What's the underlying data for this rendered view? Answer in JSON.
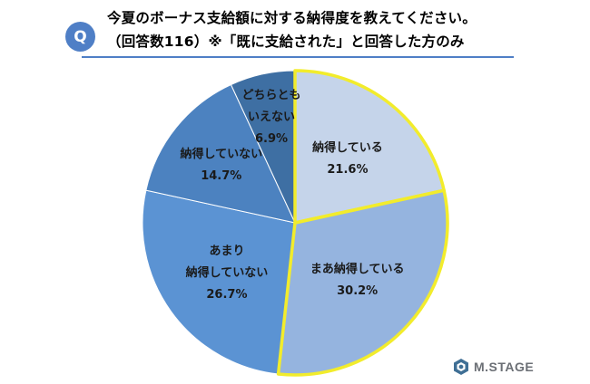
{
  "header": {
    "badge": "Q",
    "title_line1": "今夏のボーナス支給額に対する納得度を教えてください。",
    "title_line2": "（回答数116）※「既に支給された」と回答した方のみ"
  },
  "chart_data": {
    "type": "pie",
    "title": "今夏のボーナス支給額に対する納得度を教えてください。（回答数116）※「既に支給された」と回答した方のみ",
    "start_angle_deg": 0,
    "direction": "clockwise",
    "slices": [
      {
        "name": "納得している",
        "value": 21.6,
        "label_lines": [
          "納得している",
          "21.6%"
        ],
        "color": "#c5d4ea",
        "highlight": true
      },
      {
        "name": "まあ納得している",
        "value": 30.2,
        "label_lines": [
          "まあ納得している",
          "30.2%"
        ],
        "color": "#95b4df",
        "highlight": true
      },
      {
        "name": "あまり納得していない",
        "value": 26.7,
        "label_lines": [
          "あまり",
          "納得していない",
          "26.7%"
        ],
        "color": "#5b93d3",
        "highlight": false
      },
      {
        "name": "納得していない",
        "value": 14.7,
        "label_lines": [
          "納得していない",
          "14.7%"
        ],
        "color": "#4c82c0",
        "highlight": false
      },
      {
        "name": "どちらともいえない",
        "value": 6.9,
        "label_lines": [
          "どちらとも",
          "いえない",
          "6.9%"
        ],
        "color": "#3e6fa3",
        "highlight": false
      }
    ],
    "highlight_color": "#f2ec2c",
    "legend": "none"
  },
  "logo": {
    "text": "M.STAGE"
  }
}
